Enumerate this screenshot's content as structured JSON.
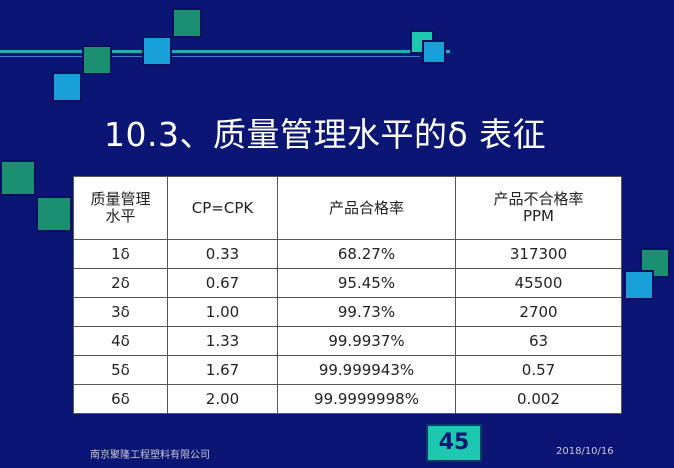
{
  "slide": {
    "title": "10.3、质量管理水平的δ 表征",
    "page_number": "45",
    "company": "南京聚隆工程塑料有限公司",
    "date": "2018/10/16"
  },
  "table": {
    "headers": [
      "质量管理\n水平",
      "CP=CPK",
      "产品合格率",
      "产品不合格率\nPPM"
    ],
    "rows": [
      [
        "1δ",
        "0.33",
        "68.27%",
        "317300"
      ],
      [
        "2δ",
        "0.67",
        "95.45%",
        "45500"
      ],
      [
        "3δ",
        "1.00",
        "99.73%",
        "2700"
      ],
      [
        "4δ",
        "1.33",
        "99.9937%",
        "63"
      ],
      [
        "5δ",
        "1.67",
        "99.999943%",
        "0.57"
      ],
      [
        "6δ",
        "2.00",
        "99.9999998%",
        "0.002"
      ]
    ]
  },
  "colors": {
    "background": "#0b1573",
    "accent_teal": "#1ec8b0",
    "accent_blue": "#1aa0d8",
    "accent_green": "#1a9070"
  }
}
